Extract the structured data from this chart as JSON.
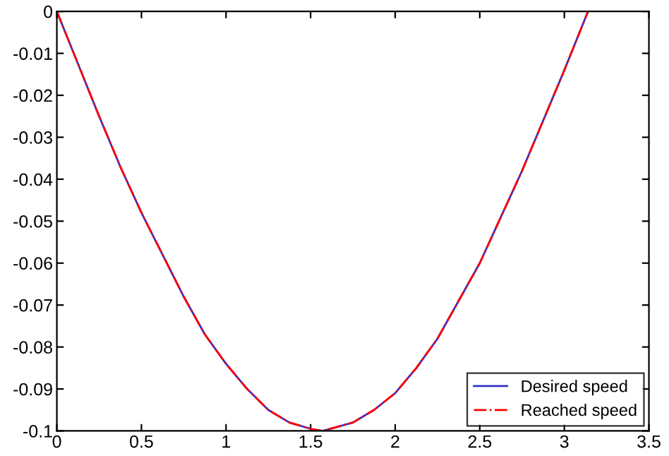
{
  "chart_data": {
    "type": "line",
    "x": [
      0,
      0.125,
      0.25,
      0.375,
      0.5,
      0.625,
      0.75,
      0.875,
      1,
      1.125,
      1.25,
      1.375,
      1.5,
      1.57,
      1.75,
      1.875,
      2,
      2.125,
      2.25,
      2.375,
      2.5,
      2.625,
      2.75,
      2.875,
      3,
      3.07,
      3.14
    ],
    "series": [
      {
        "name": "Desired speed",
        "color": "#3333cc",
        "line_style": "solid",
        "values": [
          0,
          -0.0125,
          -0.025,
          -0.037,
          -0.048,
          -0.058,
          -0.068,
          -0.077,
          -0.084,
          -0.09,
          -0.095,
          -0.098,
          -0.0995,
          -0.1,
          -0.098,
          -0.095,
          -0.091,
          -0.085,
          -0.078,
          -0.069,
          -0.06,
          -0.049,
          -0.038,
          -0.026,
          -0.014,
          -0.007,
          0
        ]
      },
      {
        "name": "Reached speed",
        "color": "#ff0000",
        "line_style": "dashdot",
        "values": [
          0,
          -0.0125,
          -0.025,
          -0.037,
          -0.048,
          -0.058,
          -0.068,
          -0.077,
          -0.084,
          -0.09,
          -0.095,
          -0.098,
          -0.0995,
          -0.1,
          -0.098,
          -0.095,
          -0.091,
          -0.085,
          -0.078,
          -0.069,
          -0.06,
          -0.049,
          -0.038,
          -0.026,
          -0.014,
          -0.007,
          0
        ]
      }
    ],
    "xlim": [
      0,
      3.5
    ],
    "xticks": [
      0,
      0.5,
      1,
      1.5,
      2,
      2.5,
      3,
      3.5
    ],
    "ylim": [
      -0.1,
      0
    ],
    "yticks": [
      -0.1,
      -0.09,
      -0.08,
      -0.07,
      -0.06,
      -0.05,
      -0.04,
      -0.03,
      -0.02,
      -0.01,
      0
    ],
    "grid": false,
    "legend": "bottom right",
    "marker": "none"
  }
}
